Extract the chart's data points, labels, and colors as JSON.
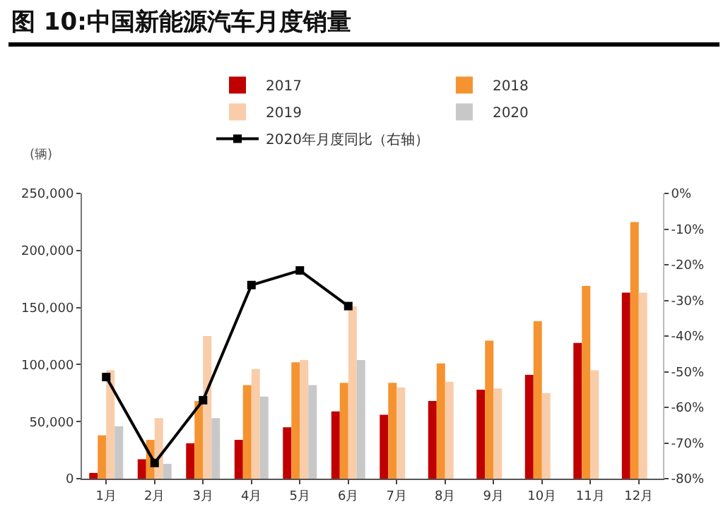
{
  "chart_data": {
    "type": "bar",
    "title": "图 10:中国新能源汽车月度销量",
    "ylabel": "(辆)",
    "categories": [
      "1月",
      "2月",
      "3月",
      "4月",
      "5月",
      "6月",
      "7月",
      "8月",
      "9月",
      "10月",
      "11月",
      "12月"
    ],
    "series": [
      {
        "name": "2017",
        "color": "#c00000",
        "values": [
          5000,
          17000,
          31000,
          34000,
          45000,
          59000,
          56000,
          68000,
          78000,
          91000,
          119000,
          163000
        ]
      },
      {
        "name": "2018",
        "color": "#f59331",
        "values": [
          38000,
          34000,
          68000,
          82000,
          102000,
          84000,
          84000,
          101000,
          121000,
          138000,
          169000,
          225000
        ]
      },
      {
        "name": "2019",
        "color": "#f9cdaa",
        "values": [
          95000,
          53000,
          125000,
          96000,
          104000,
          151000,
          80000,
          85000,
          79000,
          75000,
          95000,
          163000
        ]
      },
      {
        "name": "2020",
        "color": "#c8c8c8",
        "values": [
          46000,
          13000,
          53000,
          72000,
          82000,
          104000,
          null,
          null,
          null,
          null,
          null,
          null
        ]
      },
      {
        "name": "2020年月度同比（右轴）",
        "type": "line",
        "axis": "y2",
        "color": "#000000",
        "marker": "square",
        "values": [
          -51.5,
          -75.6,
          -58,
          -25.7,
          -21.6,
          -31.6,
          null,
          null,
          null,
          null,
          null,
          null
        ]
      }
    ],
    "ylim": [
      0,
      250000
    ],
    "yticks": [
      0,
      {
        "value": 50000,
        "label": "50,000"
      },
      {
        "value": 100000,
        "label": "100,000"
      },
      {
        "value": 150000,
        "label": "150,000"
      },
      {
        "value": 200000,
        "label": "200,000"
      },
      {
        "value": 250000,
        "label": "250,000"
      }
    ],
    "y2lim": [
      -80,
      0
    ],
    "y2ticks": [
      {
        "value": -80,
        "label": "-80%"
      },
      {
        "value": -70,
        "label": "-70%"
      },
      {
        "value": -60,
        "label": "-60%"
      },
      {
        "value": -50,
        "label": "-50%"
      },
      {
        "value": -40,
        "label": "-40%"
      },
      {
        "value": -30,
        "label": "-30%"
      },
      {
        "value": -20,
        "label": "-20%"
      },
      {
        "value": -10,
        "label": "-10%"
      },
      {
        "value": 0,
        "label": "0%"
      }
    ],
    "grid": false,
    "legend": "top"
  }
}
